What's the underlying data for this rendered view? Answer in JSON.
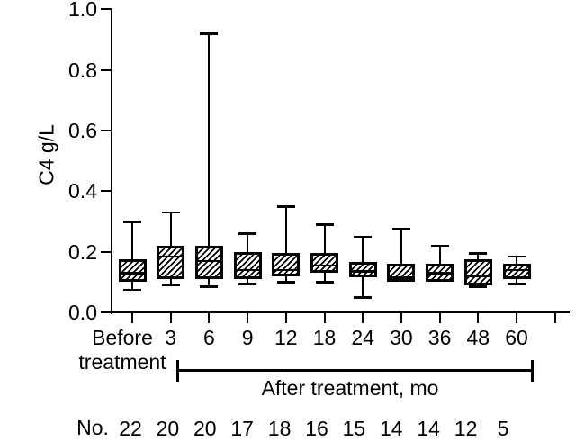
{
  "colors": {
    "line": "#000000",
    "background": "#ffffff"
  },
  "chart_data": {
    "type": "boxplot",
    "title": "",
    "ylabel": "C4 g/L",
    "xlabel": "",
    "ylim": [
      0.0,
      1.0
    ],
    "y_tick_labels": [
      "0.0",
      "0.2",
      "0.4",
      "0.6",
      "0.8",
      "1.0"
    ],
    "grid": "off",
    "box_fill": "diagonal-hatch",
    "group_bracket_label": "After treatment, mo",
    "count_row_label": "No.",
    "before_label_lines": [
      "Before",
      "treatment"
    ],
    "categories": [
      "Before treatment",
      "3",
      "6",
      "9",
      "12",
      "18",
      "24",
      "30",
      "36",
      "48",
      "60"
    ],
    "counts": [
      22,
      20,
      20,
      17,
      18,
      16,
      15,
      14,
      14,
      12,
      5
    ],
    "boxes": [
      {
        "category": "Before treatment",
        "n": 22,
        "whisker_low": 0.075,
        "q1": 0.1,
        "median": 0.13,
        "q3": 0.175,
        "whisker_high": 0.3
      },
      {
        "category": "3",
        "n": 20,
        "whisker_low": 0.09,
        "q1": 0.11,
        "median": 0.185,
        "q3": 0.22,
        "whisker_high": 0.33
      },
      {
        "category": "6",
        "n": 20,
        "whisker_low": 0.085,
        "q1": 0.11,
        "median": 0.17,
        "q3": 0.22,
        "whisker_high": 0.92
      },
      {
        "category": "9",
        "n": 17,
        "whisker_low": 0.095,
        "q1": 0.11,
        "median": 0.14,
        "q3": 0.2,
        "whisker_high": 0.26
      },
      {
        "category": "12",
        "n": 18,
        "whisker_low": 0.1,
        "q1": 0.12,
        "median": 0.14,
        "q3": 0.195,
        "whisker_high": 0.35
      },
      {
        "category": "18",
        "n": 16,
        "whisker_low": 0.1,
        "q1": 0.13,
        "median": 0.155,
        "q3": 0.195,
        "whisker_high": 0.29
      },
      {
        "category": "24",
        "n": 15,
        "whisker_low": 0.05,
        "q1": 0.115,
        "median": 0.135,
        "q3": 0.165,
        "whisker_high": 0.25
      },
      {
        "category": "30",
        "n": 14,
        "whisker_low": 0.1,
        "q1": 0.1,
        "median": 0.115,
        "q3": 0.16,
        "whisker_high": 0.275
      },
      {
        "category": "36",
        "n": 14,
        "whisker_low": 0.1,
        "q1": 0.1,
        "median": 0.13,
        "q3": 0.16,
        "whisker_high": 0.22
      },
      {
        "category": "48",
        "n": 12,
        "whisker_low": 0.085,
        "q1": 0.09,
        "median": 0.12,
        "q3": 0.175,
        "whisker_high": 0.195
      },
      {
        "category": "60",
        "n": 5,
        "whisker_low": 0.095,
        "q1": 0.11,
        "median": 0.14,
        "q3": 0.16,
        "whisker_high": 0.185
      }
    ]
  }
}
